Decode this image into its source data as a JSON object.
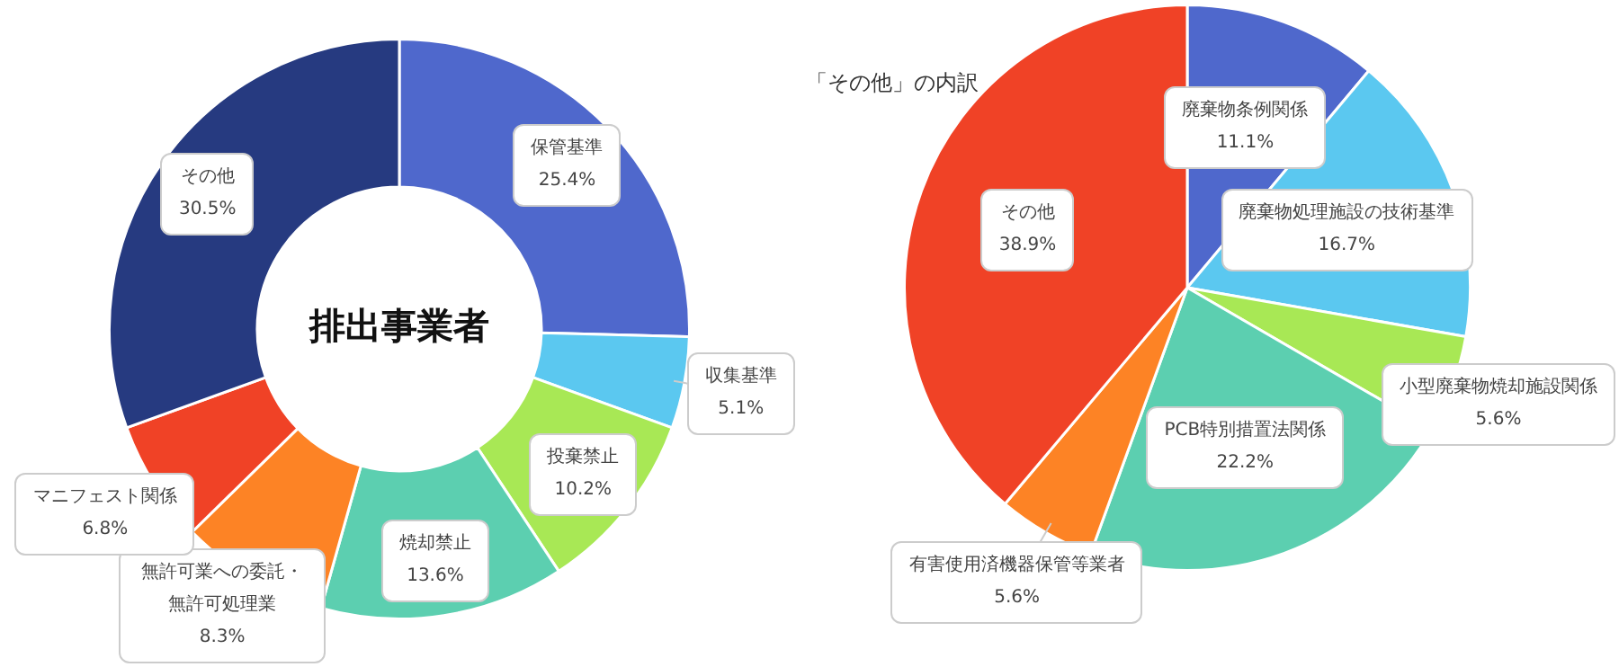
{
  "chart_data": [
    {
      "type": "donut",
      "title": "排出事業者",
      "categories": [
        "保管基準",
        "収集基準",
        "投棄禁止",
        "焼却禁止",
        "無許可業への委託・無許可処理業",
        "マニフェスト関係",
        "その他"
      ],
      "values": [
        25.4,
        5.1,
        10.2,
        13.6,
        8.3,
        6.8,
        30.5
      ],
      "colors": [
        "#4f68cc",
        "#5bc8f0",
        "#a8e855",
        "#5ccfb0",
        "#fd8325",
        "#f04226",
        "#263a80"
      ],
      "value_labels": [
        "25.4%",
        "5.1%",
        "10.2%",
        "13.6%",
        "8.3%",
        "6.8%",
        "30.5%"
      ]
    },
    {
      "type": "pie",
      "title": "「その他」の内訳",
      "categories": [
        "廃棄物条例関係",
        "廃棄物処理施設の技術基準",
        "小型廃棄物焼却施設関係",
        "PCB特別措置法関係",
        "有害使用済機器保管等業者",
        "その他"
      ],
      "values": [
        11.1,
        16.7,
        5.6,
        22.2,
        5.6,
        38.9
      ],
      "colors": [
        "#4f68cc",
        "#5bc8f0",
        "#a8e855",
        "#5ccfb0",
        "#fd8325",
        "#f04226"
      ],
      "value_labels": [
        "11.1%",
        "16.7%",
        "5.6%",
        "22.2%",
        "5.6%",
        "38.9%"
      ]
    }
  ]
}
